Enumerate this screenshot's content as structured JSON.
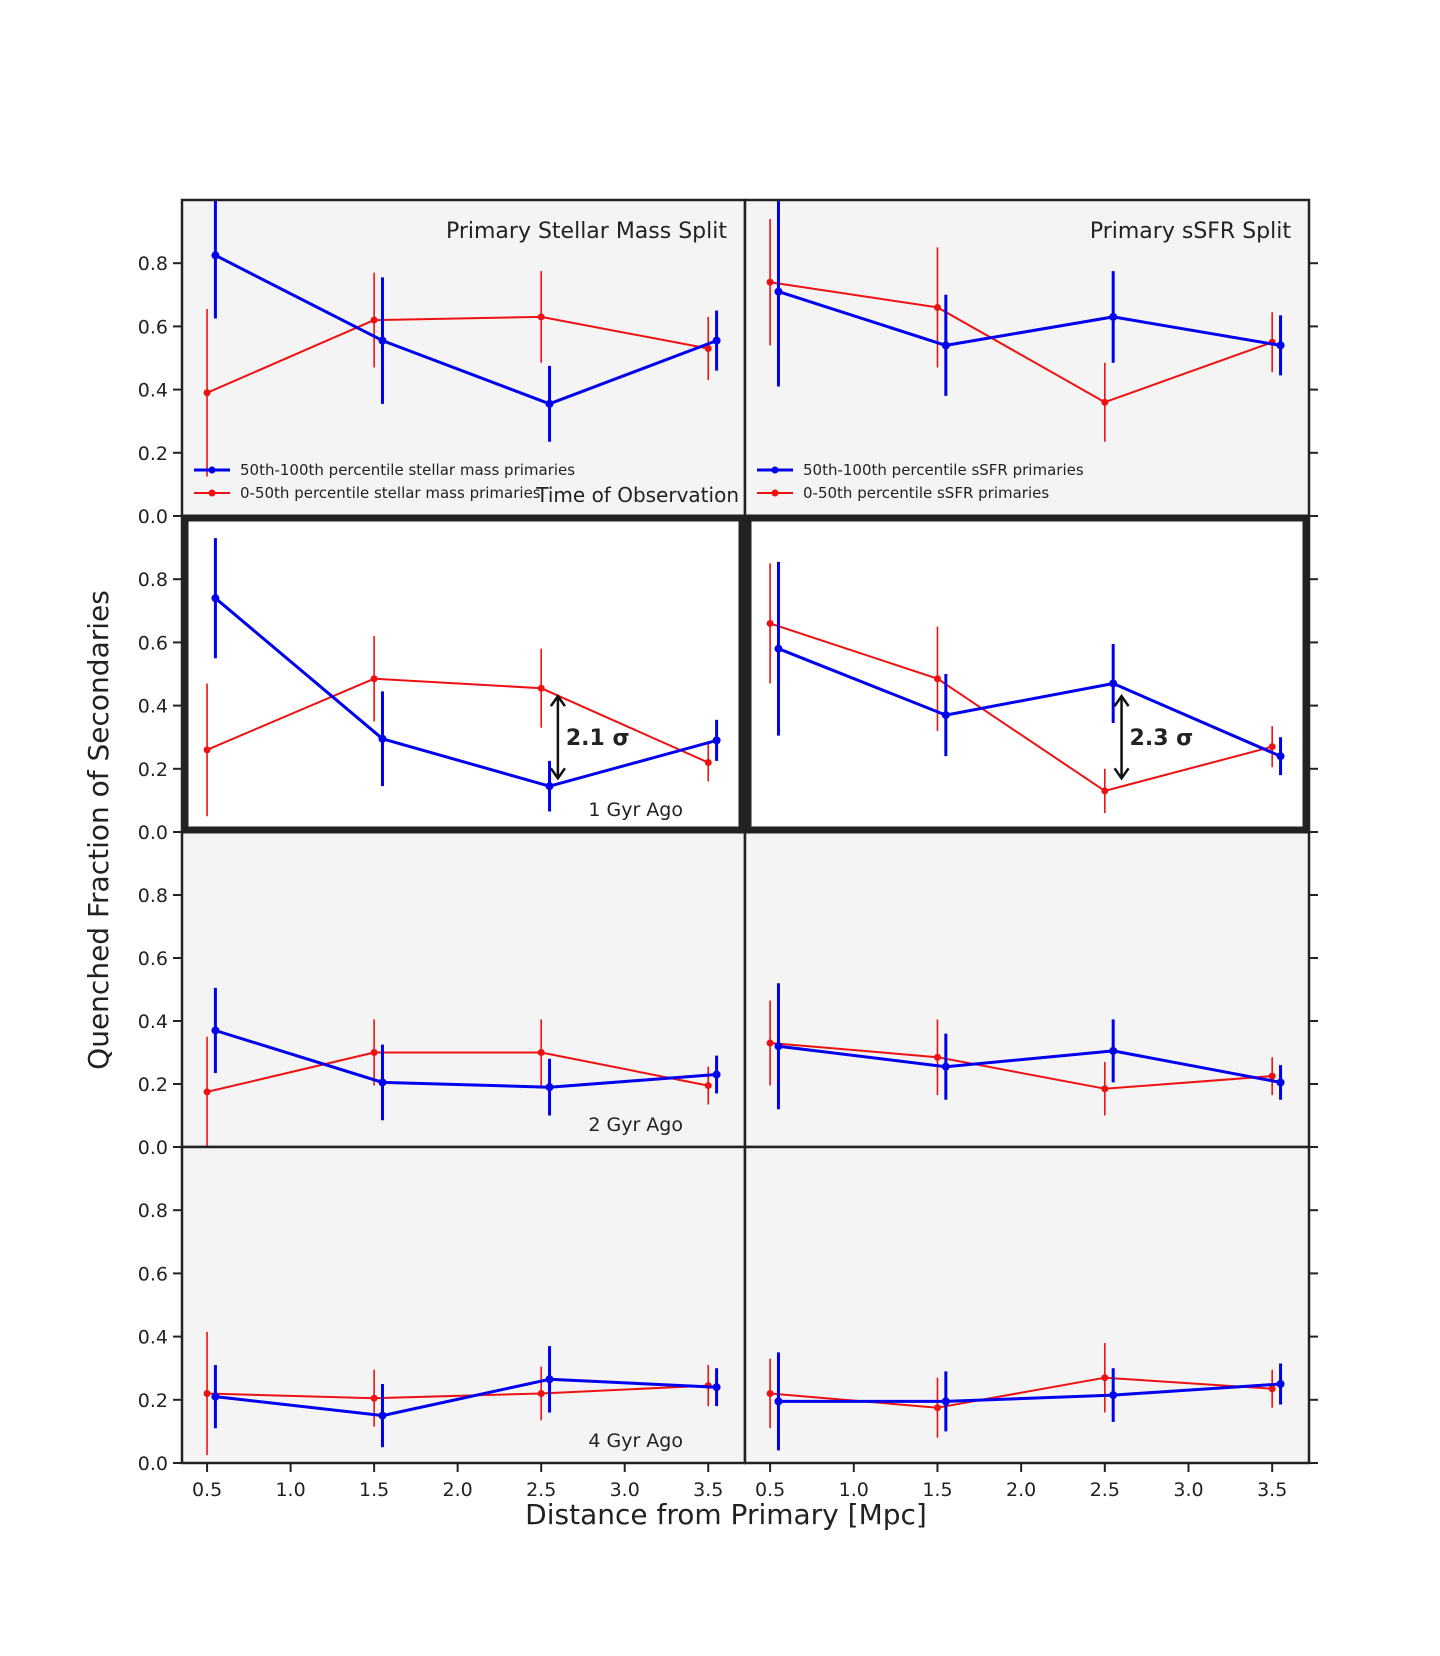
{
  "figure": {
    "xlabel": "Distance from Primary [Mpc]",
    "ylabel": "Quenched Fraction of Secondaries",
    "colors": {
      "high": "#0000ee",
      "low": "#ee1111",
      "panel_bg": "#f4f4f4",
      "frame": "#222222"
    }
  },
  "chart_data": {
    "type": "line",
    "x_ticks": [
      "0.5",
      "1.0",
      "1.5",
      "2.0",
      "2.5",
      "3.0",
      "3.5"
    ],
    "y_ticks": [
      "0.0",
      "0.2",
      "0.4",
      "0.6",
      "0.8"
    ],
    "xlim": [
      0.35,
      3.72
    ],
    "ylim": [
      0.0,
      1.0
    ],
    "columns": [
      {
        "title": "Primary Stellar Mass Split",
        "legend": [
          "50th-100th percentile stellar mass primaries",
          "0-50th percentile stellar mass primaries"
        ]
      },
      {
        "title": "Primary sSFR Split",
        "legend": [
          "50th-100th percentile sSFR primaries",
          "0-50th percentile sSFR primaries"
        ]
      }
    ],
    "rows": [
      {
        "label": "Time of Observation",
        "highlight": false,
        "panels": [
          {
            "high": {
              "x": [
                0.55,
                1.55,
                2.55,
                3.55
              ],
              "y": [
                0.825,
                0.555,
                0.355,
                0.555
              ],
              "err": [
                0.2,
                0.2,
                0.12,
                0.095
              ]
            },
            "low": {
              "x": [
                0.5,
                1.5,
                2.5,
                3.5
              ],
              "y": [
                0.39,
                0.62,
                0.63,
                0.53
              ],
              "err": [
                0.265,
                0.15,
                0.145,
                0.1
              ]
            },
            "annotation": null
          },
          {
            "high": {
              "x": [
                0.55,
                1.55,
                2.55,
                3.55
              ],
              "y": [
                0.71,
                0.54,
                0.63,
                0.54
              ],
              "err": [
                0.3,
                0.16,
                0.145,
                0.095
              ]
            },
            "low": {
              "x": [
                0.5,
                1.5,
                2.5,
                3.5
              ],
              "y": [
                0.74,
                0.66,
                0.36,
                0.55
              ],
              "err": [
                0.2,
                0.19,
                0.125,
                0.095
              ]
            },
            "annotation": null
          }
        ]
      },
      {
        "label": "1 Gyr Ago",
        "highlight": true,
        "panels": [
          {
            "high": {
              "x": [
                0.55,
                1.55,
                2.55,
                3.55
              ],
              "y": [
                0.74,
                0.295,
                0.145,
                0.29
              ],
              "err": [
                0.19,
                0.15,
                0.08,
                0.065
              ]
            },
            "low": {
              "x": [
                0.5,
                1.5,
                2.5,
                3.5
              ],
              "y": [
                0.26,
                0.485,
                0.455,
                0.22
              ],
              "err": [
                0.21,
                0.135,
                0.125,
                0.06
              ]
            },
            "annotation": {
              "text": "2.1 σ",
              "x": 2.6,
              "y_top": 0.43,
              "y_bottom": 0.17
            }
          },
          {
            "high": {
              "x": [
                0.55,
                1.55,
                2.55,
                3.55
              ],
              "y": [
                0.58,
                0.37,
                0.47,
                0.24
              ],
              "err": [
                0.275,
                0.13,
                0.125,
                0.06
              ]
            },
            "low": {
              "x": [
                0.5,
                1.5,
                2.5,
                3.5
              ],
              "y": [
                0.66,
                0.485,
                0.13,
                0.27
              ],
              "err": [
                0.19,
                0.165,
                0.07,
                0.065
              ]
            },
            "annotation": {
              "text": "2.3 σ",
              "x": 2.6,
              "y_top": 0.43,
              "y_bottom": 0.17
            }
          }
        ]
      },
      {
        "label": "2 Gyr Ago",
        "highlight": false,
        "panels": [
          {
            "high": {
              "x": [
                0.55,
                1.55,
                2.55,
                3.55
              ],
              "y": [
                0.37,
                0.205,
                0.19,
                0.23
              ],
              "err": [
                0.135,
                0.12,
                0.09,
                0.06
              ]
            },
            "low": {
              "x": [
                0.5,
                1.5,
                2.5,
                3.5
              ],
              "y": [
                0.175,
                0.3,
                0.3,
                0.195
              ],
              "err": [
                0.175,
                0.105,
                0.105,
                0.06
              ]
            },
            "annotation": null
          },
          {
            "high": {
              "x": [
                0.55,
                1.55,
                2.55,
                3.55
              ],
              "y": [
                0.32,
                0.255,
                0.305,
                0.205
              ],
              "err": [
                0.2,
                0.105,
                0.1,
                0.055
              ]
            },
            "low": {
              "x": [
                0.5,
                1.5,
                2.5,
                3.5
              ],
              "y": [
                0.33,
                0.285,
                0.185,
                0.225
              ],
              "err": [
                0.135,
                0.12,
                0.085,
                0.06
              ]
            },
            "annotation": null
          }
        ]
      },
      {
        "label": "4 Gyr Ago",
        "highlight": false,
        "panels": [
          {
            "high": {
              "x": [
                0.55,
                1.55,
                2.55,
                3.55
              ],
              "y": [
                0.21,
                0.15,
                0.265,
                0.24
              ],
              "err": [
                0.1,
                0.1,
                0.105,
                0.06
              ]
            },
            "low": {
              "x": [
                0.5,
                1.5,
                2.5,
                3.5
              ],
              "y": [
                0.22,
                0.205,
                0.22,
                0.245
              ],
              "err": [
                0.195,
                0.09,
                0.085,
                0.065
              ]
            },
            "annotation": null
          },
          {
            "high": {
              "x": [
                0.55,
                1.55,
                2.55,
                3.55
              ],
              "y": [
                0.195,
                0.195,
                0.215,
                0.25
              ],
              "err": [
                0.155,
                0.095,
                0.085,
                0.065
              ]
            },
            "low": {
              "x": [
                0.5,
                1.5,
                2.5,
                3.5
              ],
              "y": [
                0.22,
                0.175,
                0.27,
                0.235
              ],
              "err": [
                0.11,
                0.095,
                0.11,
                0.06
              ]
            },
            "annotation": null
          }
        ]
      }
    ]
  }
}
